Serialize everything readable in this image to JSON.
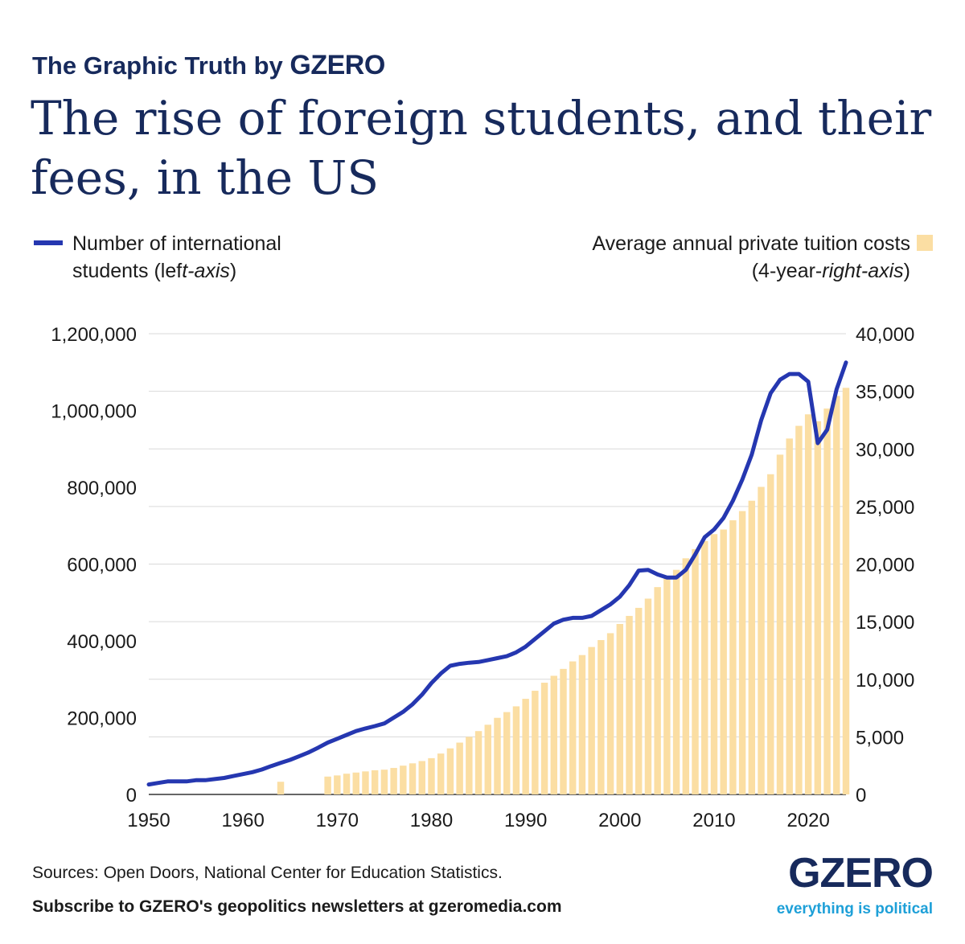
{
  "header": {
    "kicker_prefix": "The Graphic Truth by",
    "kicker_brand": "GZERO",
    "title": "The rise of foreign students, and their fees, in the US"
  },
  "legend": {
    "line_label_part1": "Number of international students (lef",
    "line_label_part2": "t-axis",
    "line_label_part3": ")",
    "bar_label_part1": "Average annual private tuition costs (4-year-",
    "bar_label_part2": "right-axis",
    "bar_label_part3": ")"
  },
  "footer": {
    "sources": "Sources: Open Doors, National Center for Education Statistics.",
    "subscribe": "Subscribe to GZERO's geopolitics newsletters at gzeromedia.com",
    "logo_word": "GZERO",
    "logo_tag": "everything is political"
  },
  "colors": {
    "line": "#2537b0",
    "bar": "#fbdea3",
    "grid": "#d9d9d9",
    "title": "#172a5c",
    "tagline": "#1ea0d8"
  },
  "chart_data": {
    "type": "bar+line",
    "x_ticks": [
      "1950",
      "1960",
      "1970",
      "1980",
      "1990",
      "2000",
      "2010",
      "2020"
    ],
    "xlim": [
      1950,
      2024
    ],
    "y_left": {
      "ylim": [
        0,
        1200000
      ],
      "ticks": [
        0,
        200000,
        400000,
        600000,
        800000,
        1000000,
        1200000
      ],
      "tick_labels": [
        "0",
        "200,000",
        "400,000",
        "600,000",
        "800,000",
        "1,000,000",
        "1,200,000"
      ]
    },
    "y_right": {
      "ylim": [
        0,
        40000
      ],
      "ticks": [
        0,
        5000,
        10000,
        15000,
        20000,
        25000,
        30000,
        35000,
        40000
      ],
      "tick_labels": [
        "0",
        "5,000",
        "10,000",
        "15,000",
        "20,000",
        "25,000",
        "30,000",
        "35,000",
        "40,000"
      ]
    },
    "series": [
      {
        "name": "Number of international students",
        "kind": "line",
        "axis": "left",
        "x": [
          1950,
          1951,
          1952,
          1953,
          1954,
          1955,
          1956,
          1957,
          1958,
          1959,
          1960,
          1961,
          1962,
          1963,
          1964,
          1965,
          1966,
          1967,
          1968,
          1969,
          1970,
          1971,
          1972,
          1973,
          1974,
          1975,
          1976,
          1977,
          1978,
          1979,
          1980,
          1981,
          1982,
          1983,
          1984,
          1985,
          1986,
          1987,
          1988,
          1989,
          1990,
          1991,
          1992,
          1993,
          1994,
          1995,
          1996,
          1997,
          1998,
          1999,
          2000,
          2001,
          2002,
          2003,
          2004,
          2005,
          2006,
          2007,
          2008,
          2009,
          2010,
          2011,
          2012,
          2013,
          2014,
          2015,
          2016,
          2017,
          2018,
          2019,
          2020,
          2021,
          2022,
          2023,
          2024
        ],
        "values": [
          26000,
          30000,
          34000,
          34000,
          34000,
          37000,
          37000,
          40000,
          43000,
          48000,
          53000,
          58000,
          65000,
          74000,
          82000,
          90000,
          100000,
          110000,
          122000,
          135000,
          145000,
          155000,
          165000,
          172000,
          178000,
          185000,
          200000,
          215000,
          235000,
          260000,
          290000,
          315000,
          335000,
          340000,
          343000,
          345000,
          350000,
          355000,
          360000,
          370000,
          385000,
          405000,
          425000,
          445000,
          455000,
          460000,
          460000,
          465000,
          480000,
          495000,
          515000,
          545000,
          583000,
          585000,
          573000,
          565000,
          565000,
          585000,
          625000,
          670000,
          690000,
          720000,
          765000,
          820000,
          885000,
          975000,
          1045000,
          1080000,
          1095000,
          1095000,
          1075000,
          915000,
          950000,
          1055000,
          1125000
        ]
      },
      {
        "name": "Average annual private tuition costs",
        "kind": "bar",
        "axis": "right",
        "x": [
          1964,
          1969,
          1970,
          1971,
          1972,
          1973,
          1974,
          1975,
          1976,
          1977,
          1978,
          1979,
          1980,
          1981,
          1982,
          1983,
          1984,
          1985,
          1986,
          1987,
          1988,
          1989,
          1990,
          1991,
          1992,
          1993,
          1994,
          1995,
          1996,
          1997,
          1998,
          1999,
          2000,
          2001,
          2002,
          2003,
          2004,
          2005,
          2006,
          2007,
          2008,
          2009,
          2010,
          2011,
          2012,
          2013,
          2014,
          2015,
          2016,
          2017,
          2018,
          2019,
          2020,
          2021,
          2022,
          2023,
          2024
        ],
        "values": [
          1100,
          1550,
          1650,
          1800,
          1900,
          2000,
          2100,
          2150,
          2300,
          2500,
          2700,
          2900,
          3150,
          3550,
          4000,
          4500,
          5000,
          5500,
          6050,
          6650,
          7150,
          7650,
          8300,
          9000,
          9700,
          10300,
          10900,
          11550,
          12100,
          12800,
          13400,
          14000,
          14800,
          15500,
          16200,
          17000,
          18000,
          18800,
          19500,
          20500,
          21300,
          22000,
          22600,
          23000,
          23800,
          24600,
          25500,
          26700,
          27800,
          29500,
          30900,
          32000,
          33000,
          32400,
          33500,
          34600,
          35300
        ]
      }
    ]
  }
}
